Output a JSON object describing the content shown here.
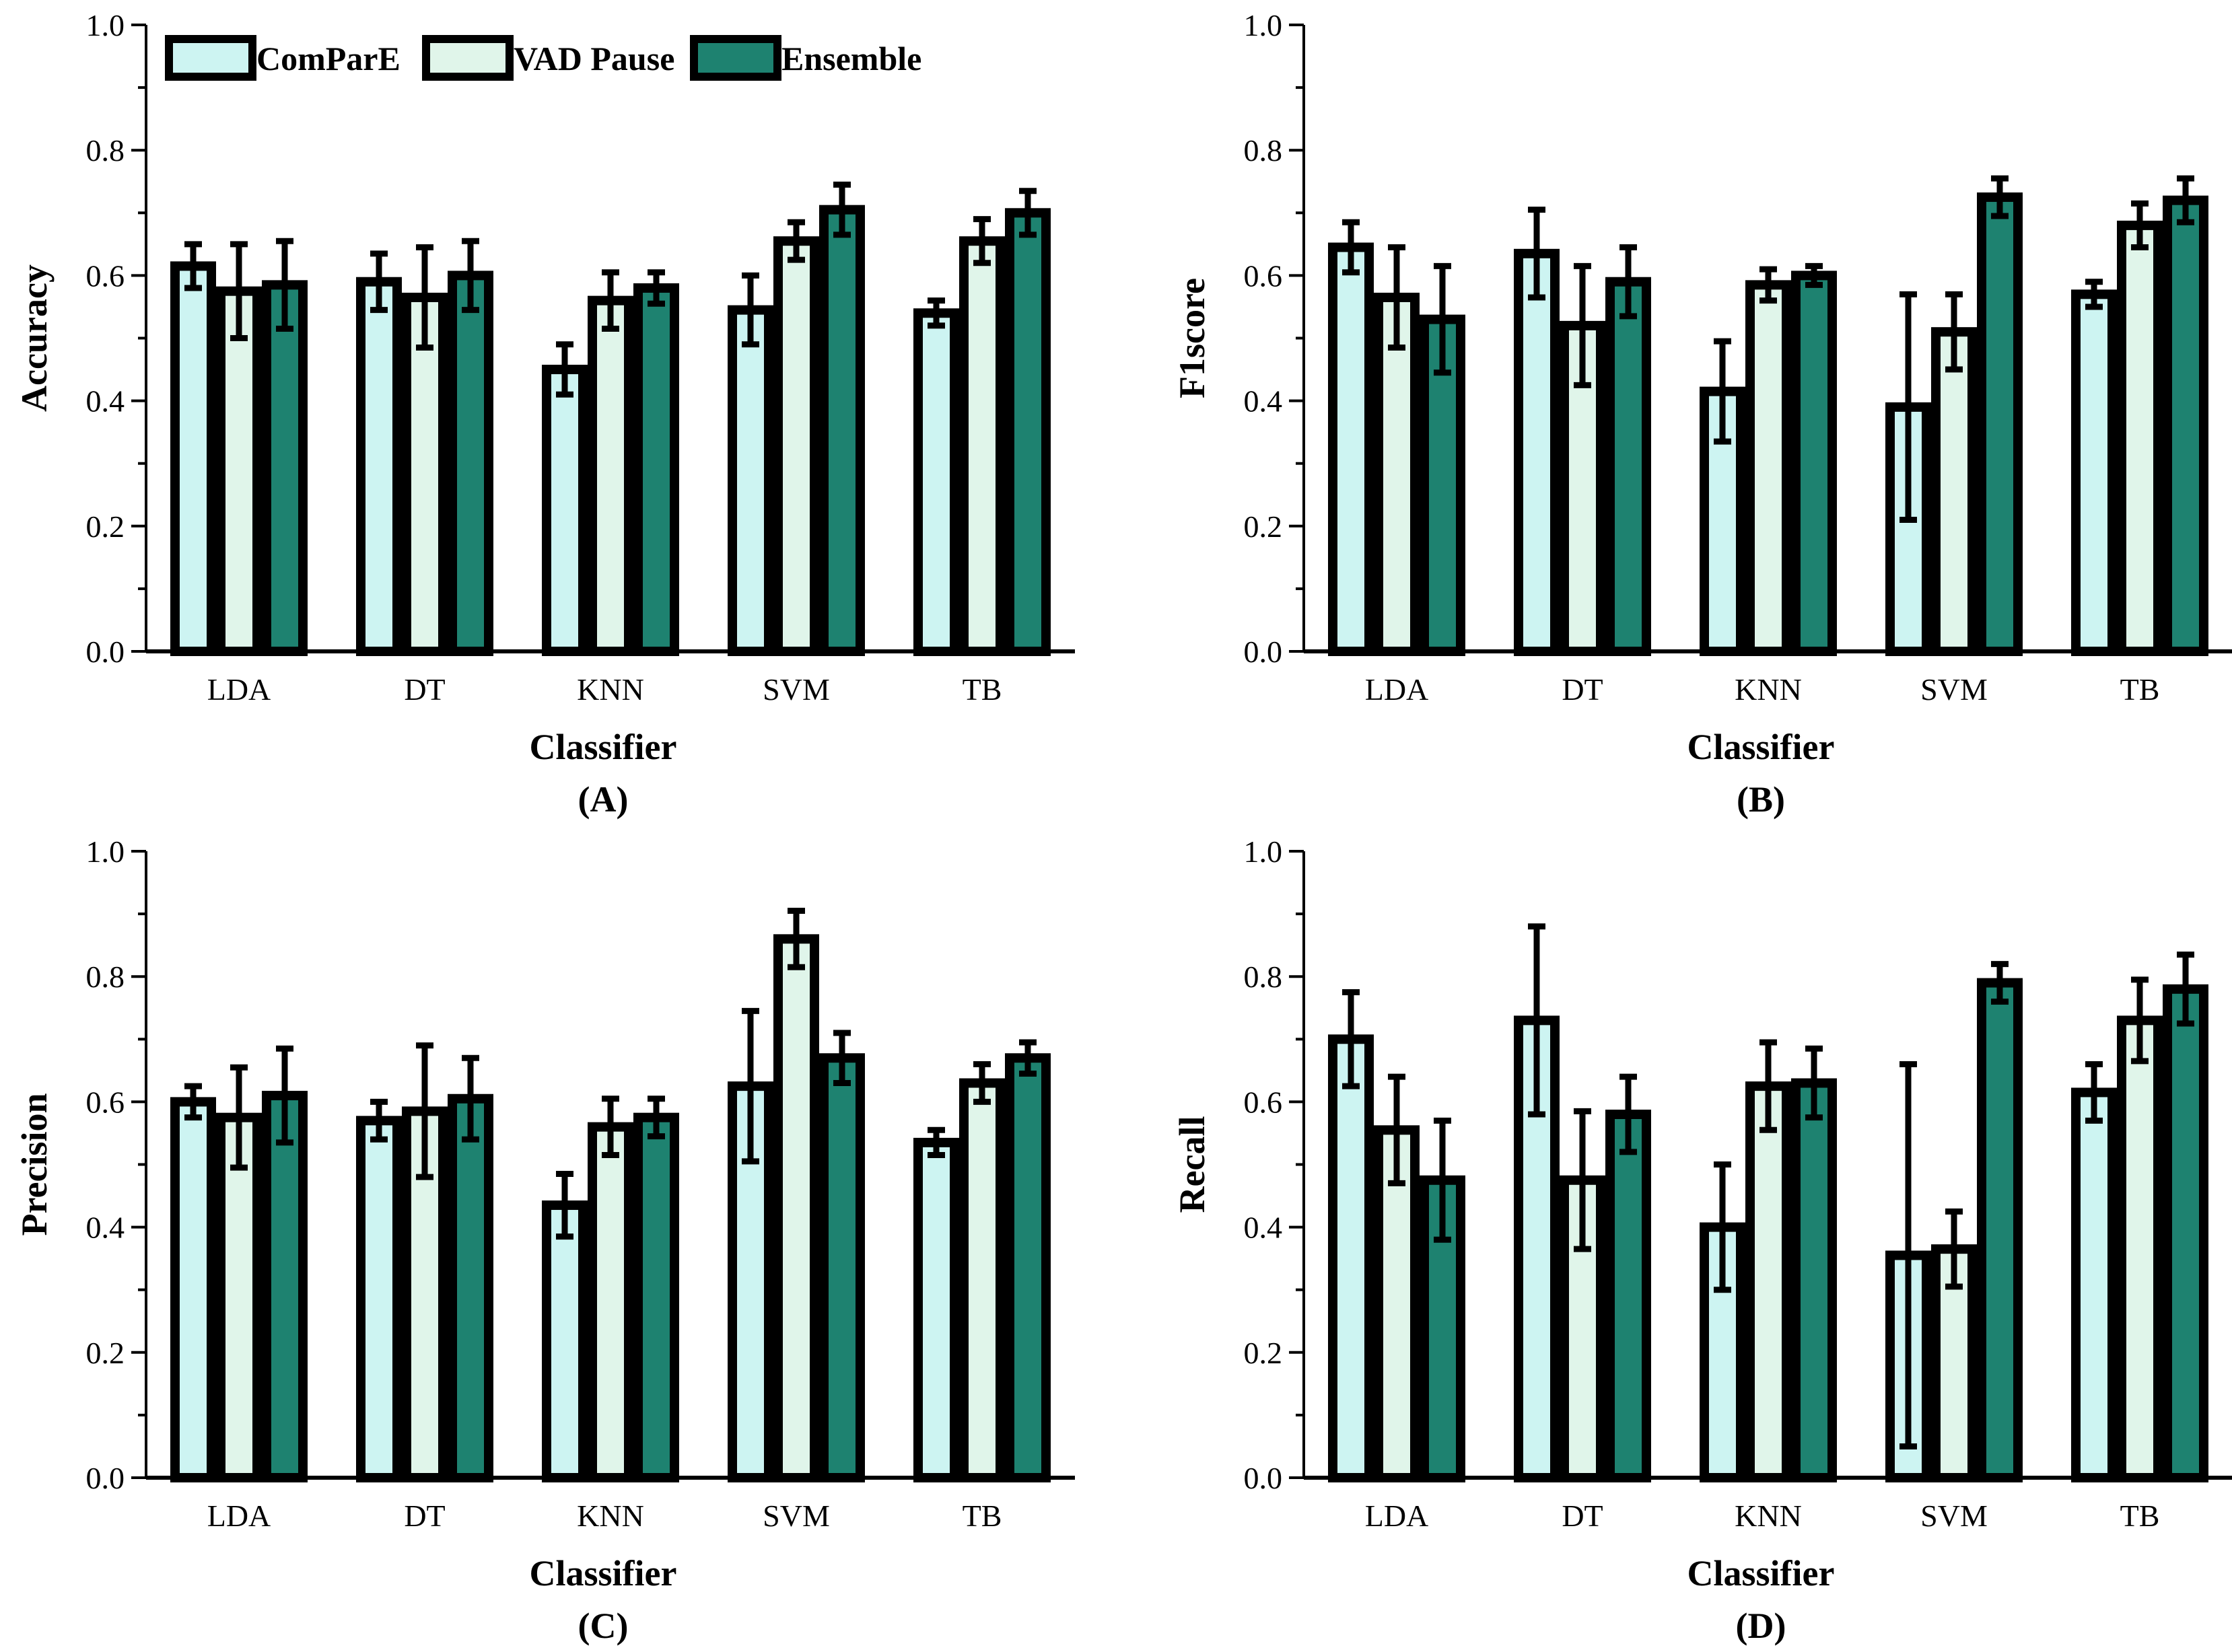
{
  "colors": {
    "series": [
      "#cdf4f2",
      "#e0f5ea",
      "#1e8270"
    ],
    "outline": "#000000"
  },
  "legend": {
    "entries": [
      "ComParE",
      "VAD Pause",
      "Ensemble"
    ]
  },
  "chart_data": [
    {
      "type": "bar",
      "panel_label": "(A)",
      "title": "",
      "xlabel": "Classifier",
      "ylabel": "Accuracy",
      "ylim": [
        0,
        1.0
      ],
      "yticks": [
        "0.0",
        "0.2",
        "0.4",
        "0.6",
        "0.8",
        "1.0"
      ],
      "categories": [
        "LDA",
        "DT",
        "KNN",
        "SVM",
        "TB"
      ],
      "legend_position": "top-left",
      "series": [
        {
          "name": "ComParE",
          "values": [
            0.615,
            0.59,
            0.45,
            0.545,
            0.54
          ],
          "errors": [
            0.035,
            0.045,
            0.04,
            0.055,
            0.02
          ]
        },
        {
          "name": "VAD Pause",
          "values": [
            0.575,
            0.565,
            0.56,
            0.655,
            0.655
          ],
          "errors": [
            0.075,
            0.08,
            0.045,
            0.03,
            0.035
          ]
        },
        {
          "name": "Ensemble",
          "values": [
            0.585,
            0.6,
            0.58,
            0.705,
            0.7
          ],
          "errors": [
            0.07,
            0.055,
            0.025,
            0.04,
            0.035
          ]
        }
      ]
    },
    {
      "type": "bar",
      "panel_label": "(B)",
      "title": "",
      "xlabel": "Classifier",
      "ylabel": "F1score",
      "ylim": [
        0,
        1.0
      ],
      "yticks": [
        "0.0",
        "0.2",
        "0.4",
        "0.6",
        "0.8",
        "1.0"
      ],
      "categories": [
        "LDA",
        "DT",
        "KNN",
        "SVM",
        "TB"
      ],
      "series": [
        {
          "name": "ComParE",
          "values": [
            0.645,
            0.635,
            0.415,
            0.39,
            0.57
          ],
          "errors": [
            0.04,
            0.07,
            0.08,
            0.18,
            0.02
          ]
        },
        {
          "name": "VAD Pause",
          "values": [
            0.565,
            0.52,
            0.585,
            0.51,
            0.68
          ],
          "errors": [
            0.08,
            0.095,
            0.025,
            0.06,
            0.035
          ]
        },
        {
          "name": "Ensemble",
          "values": [
            0.53,
            0.59,
            0.6,
            0.725,
            0.72
          ],
          "errors": [
            0.085,
            0.055,
            0.015,
            0.03,
            0.035
          ]
        }
      ]
    },
    {
      "type": "bar",
      "panel_label": "(C)",
      "title": "",
      "xlabel": "Classifier",
      "ylabel": "Precision",
      "ylim": [
        0,
        1.0
      ],
      "yticks": [
        "0.0",
        "0.2",
        "0.4",
        "0.6",
        "0.8",
        "1.0"
      ],
      "categories": [
        "LDA",
        "DT",
        "KNN",
        "SVM",
        "TB"
      ],
      "series": [
        {
          "name": "ComParE",
          "values": [
            0.6,
            0.57,
            0.435,
            0.625,
            0.535
          ],
          "errors": [
            0.025,
            0.03,
            0.05,
            0.12,
            0.02
          ]
        },
        {
          "name": "VAD Pause",
          "values": [
            0.575,
            0.585,
            0.56,
            0.86,
            0.63
          ],
          "errors": [
            0.08,
            0.105,
            0.045,
            0.045,
            0.03
          ]
        },
        {
          "name": "Ensemble",
          "values": [
            0.61,
            0.605,
            0.575,
            0.67,
            0.67
          ],
          "errors": [
            0.075,
            0.065,
            0.03,
            0.04,
            0.025
          ]
        }
      ]
    },
    {
      "type": "bar",
      "panel_label": "(D)",
      "title": "",
      "xlabel": "Classifier",
      "ylabel": "Recall",
      "ylim": [
        0,
        1.0
      ],
      "yticks": [
        "0.0",
        "0.2",
        "0.4",
        "0.6",
        "0.8",
        "1.0"
      ],
      "categories": [
        "LDA",
        "DT",
        "KNN",
        "SVM",
        "TB"
      ],
      "series": [
        {
          "name": "ComParE",
          "values": [
            0.7,
            0.73,
            0.4,
            0.355,
            0.615
          ],
          "errors": [
            0.075,
            0.15,
            0.1,
            0.305,
            0.045
          ]
        },
        {
          "name": "VAD Pause",
          "values": [
            0.555,
            0.475,
            0.625,
            0.365,
            0.73
          ],
          "errors": [
            0.085,
            0.11,
            0.07,
            0.06,
            0.065
          ]
        },
        {
          "name": "Ensemble",
          "values": [
            0.475,
            0.58,
            0.63,
            0.79,
            0.78
          ],
          "errors": [
            0.095,
            0.06,
            0.055,
            0.03,
            0.055
          ]
        }
      ]
    }
  ]
}
